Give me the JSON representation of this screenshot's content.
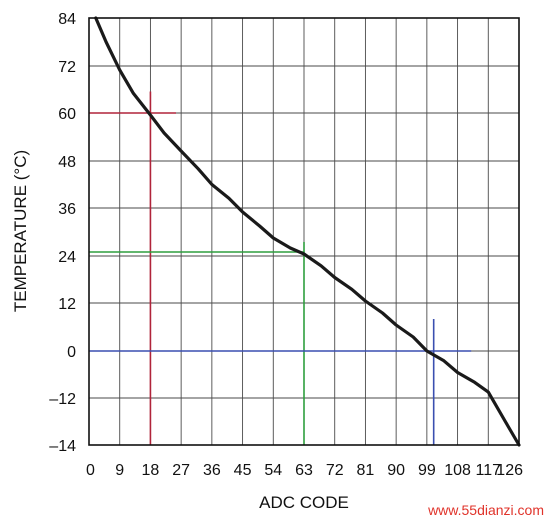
{
  "chart_data": {
    "type": "line",
    "xlabel": "ADC CODE",
    "ylabel": "TEMPERATURE (°C)",
    "xlim": [
      0,
      126
    ],
    "ylim": [
      -14,
      84
    ],
    "x_ticks": [
      0,
      9,
      18,
      27,
      36,
      45,
      54,
      63,
      72,
      81,
      90,
      99,
      108,
      117,
      126
    ],
    "x_tick_labels": [
      "0",
      "9",
      "18",
      "27",
      "36",
      "45",
      "54",
      "63",
      "72",
      "81",
      "90",
      "99",
      "108",
      "117",
      "126"
    ],
    "y_ticks": [
      84,
      72,
      60,
      48,
      36,
      24,
      12,
      0,
      -12,
      -14
    ],
    "y_tick_labels": [
      "84",
      "72",
      "60",
      "48",
      "36",
      "24",
      "12",
      "0",
      "–12",
      "–14"
    ],
    "grid": true,
    "series": [
      {
        "x": [
          2,
          5,
          9,
          13,
          18,
          22,
          27,
          32,
          36,
          41,
          45,
          50,
          54,
          59,
          63,
          68,
          72,
          77,
          81,
          86,
          90,
          95,
          99,
          104,
          108,
          113,
          117,
          122,
          126
        ],
        "y": [
          84,
          78,
          71,
          65,
          59.5,
          55,
          50.5,
          46,
          42,
          38.5,
          35,
          31.5,
          28.5,
          26,
          24.5,
          21.5,
          18.5,
          15.5,
          12.5,
          9.5,
          6.5,
          3.5,
          0,
          -2.5,
          -5.5,
          -8,
          -10.5,
          -13,
          -14
        ],
        "color": "#1a1a1a"
      }
    ],
    "reference_lines": [
      {
        "color": "#b0243a",
        "x": 18,
        "y": 60,
        "x_extent": [
          0,
          25.5
        ],
        "y_extent": [
          -14,
          65.5
        ]
      },
      {
        "color": "#2e9e3e",
        "x": 63,
        "y": 25,
        "x_extent": [
          0,
          63
        ],
        "y_extent": [
          -14,
          27.5
        ]
      },
      {
        "color": "#3a4fb0",
        "x": 101,
        "y": 0,
        "x_extent": [
          0,
          112
        ],
        "y_extent": [
          -14,
          8
        ]
      }
    ]
  },
  "watermark": "www.55dianzi.com"
}
